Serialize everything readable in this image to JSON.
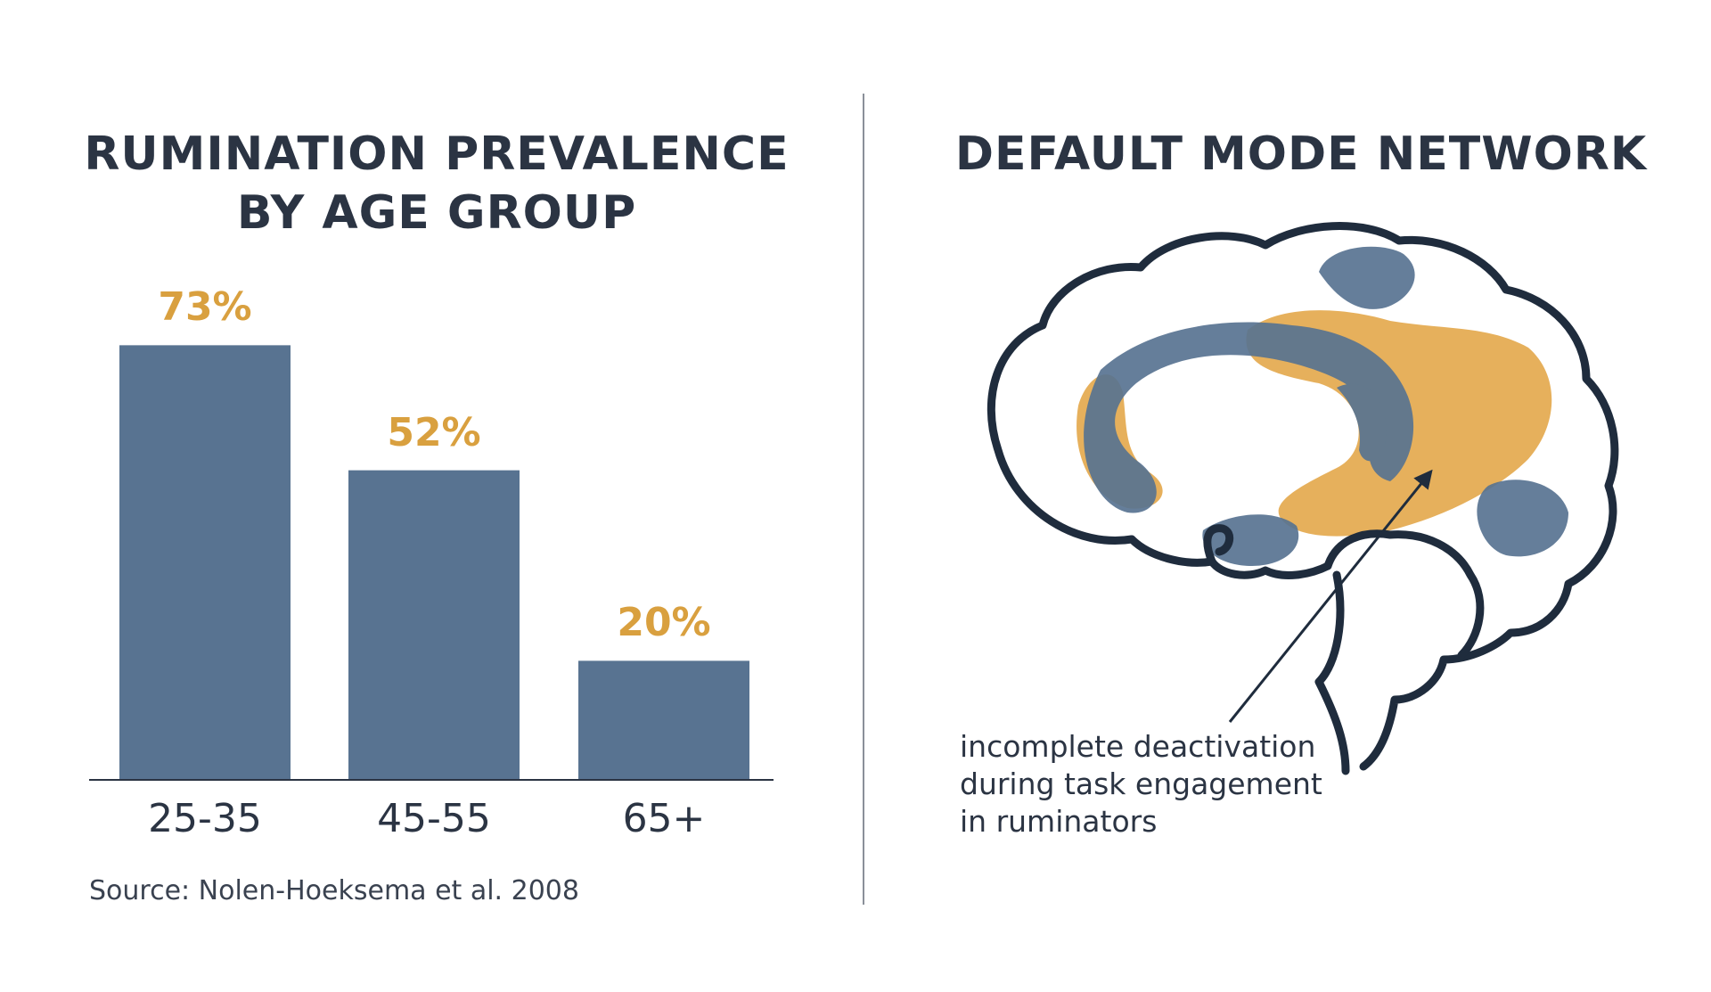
{
  "chart_data": {
    "type": "bar",
    "title": "RUMINATION PREVALENCE BY AGE GROUP",
    "title_lines": [
      "RUMINATION PREVALENCE",
      "BY AGE GROUP"
    ],
    "categories": [
      "25-35",
      "45-55",
      "65+"
    ],
    "values": [
      73,
      52,
      20
    ],
    "value_labels": [
      "73%",
      "52%",
      "20%"
    ],
    "xlabel": "",
    "ylabel": "",
    "ylim": [
      0,
      100
    ],
    "grid": false,
    "colors": {
      "bar": "#587391",
      "label": "#d9a03f"
    }
  },
  "source": "Source: Nolen-Hoeksema et al. 2008",
  "brain": {
    "title": "DEFAULT MODE NETWORK",
    "annotation_lines": [
      "incomplete deactivation",
      "during task engagement",
      "in ruminators"
    ],
    "colors": {
      "outline": "#1f2c3d",
      "blue_region": "#587391",
      "orange_region": "#e2a23f"
    }
  }
}
